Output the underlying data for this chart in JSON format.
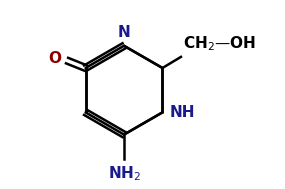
{
  "bg_color": "#ffffff",
  "line_color": "#000000",
  "text_color": "#000000",
  "label_N": "N",
  "label_NH": "NH",
  "label_NH2": "NH2",
  "label_O": "O",
  "label_CH2OH": "CH₂—OH",
  "figsize": [
    2.85,
    1.89
  ],
  "dpi": 100
}
